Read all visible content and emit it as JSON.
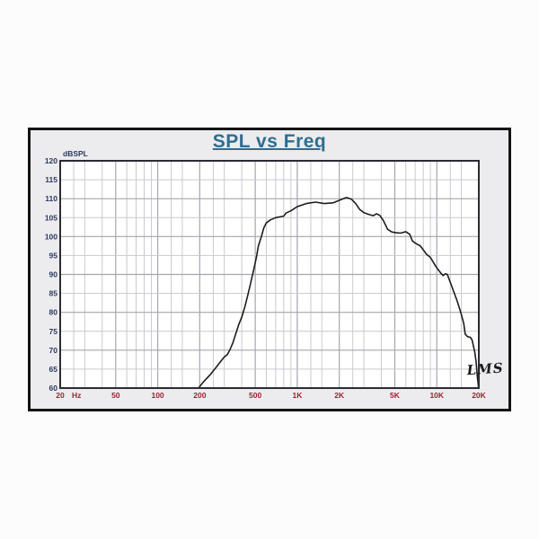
{
  "page": {
    "background": "#fcfcfc"
  },
  "card": {
    "background": "#ececee",
    "border_color": "#141414"
  },
  "title": "SPL vs Freq",
  "colors": {
    "title": "#2f6d90",
    "plot_background": "#ffffff",
    "plot_border": "#2b2b33",
    "grid_minor": "#c9cacf",
    "grid_major": "#a4a6ae",
    "curve": "#1d1d1f",
    "y_labels": "#2b3964",
    "x_labels": "#9c2033",
    "signature": "#1b1b1b"
  },
  "chart_data": {
    "type": "line",
    "title": "SPL vs Freq",
    "ylabel": "dBSPL",
    "x_unit_label": "Hz",
    "x_scale": "log",
    "xlim": [
      20,
      20000
    ],
    "ylim": [
      60,
      120
    ],
    "grid": "on",
    "y_ticks": [
      120,
      115,
      110,
      105,
      100,
      95,
      90,
      85,
      80,
      75,
      70,
      65,
      60
    ],
    "y_major_step": 10,
    "x_tick_labels": [
      {
        "f": 20,
        "label": "20"
      },
      {
        "f": 50,
        "label": "50"
      },
      {
        "f": 100,
        "label": "100"
      },
      {
        "f": 200,
        "label": "200"
      },
      {
        "f": 500,
        "label": "500"
      },
      {
        "f": 1000,
        "label": "1K"
      },
      {
        "f": 2000,
        "label": "2K"
      },
      {
        "f": 5000,
        "label": "5K"
      },
      {
        "f": 10000,
        "label": "10K"
      },
      {
        "f": 20000,
        "label": "20K"
      }
    ],
    "x_minor_multipliers": [
      1,
      1.25,
      1.5,
      2,
      2.5,
      3,
      4,
      5,
      6,
      7,
      8,
      9
    ],
    "annotations": [
      {
        "text": "LMS",
        "f": 16500,
        "db": 63.5
      }
    ],
    "series": [
      {
        "name": "SPL",
        "points": [
          [
            196,
            60
          ],
          [
            212,
            61.6
          ],
          [
            240,
            63.7
          ],
          [
            265,
            65.7
          ],
          [
            285,
            67.2
          ],
          [
            300,
            68.2
          ],
          [
            316,
            68.9
          ],
          [
            330,
            70.2
          ],
          [
            346,
            72.0
          ],
          [
            362,
            74.3
          ],
          [
            381,
            76.8
          ],
          [
            400,
            78.7
          ],
          [
            421,
            81.4
          ],
          [
            441,
            84.4
          ],
          [
            461,
            87.4
          ],
          [
            486,
            91.0
          ],
          [
            510,
            94.6
          ],
          [
            526,
            97.5
          ],
          [
            556,
            100.3
          ],
          [
            576,
            102.3
          ],
          [
            600,
            103.6
          ],
          [
            641,
            104.4
          ],
          [
            700,
            105.0
          ],
          [
            750,
            105.2
          ],
          [
            800,
            105.4
          ],
          [
            830,
            106.2
          ],
          [
            900,
            106.8
          ],
          [
            1000,
            107.9
          ],
          [
            1160,
            108.7
          ],
          [
            1350,
            109.1
          ],
          [
            1560,
            108.7
          ],
          [
            1810,
            108.9
          ],
          [
            2100,
            109.9
          ],
          [
            2250,
            110.3
          ],
          [
            2440,
            109.9
          ],
          [
            2620,
            108.7
          ],
          [
            2810,
            107.1
          ],
          [
            3010,
            106.3
          ],
          [
            3230,
            105.9
          ],
          [
            3500,
            105.5
          ],
          [
            3700,
            106.0
          ],
          [
            3900,
            105.6
          ],
          [
            4130,
            104.3
          ],
          [
            4440,
            101.9
          ],
          [
            4780,
            101.2
          ],
          [
            5120,
            101.0
          ],
          [
            5500,
            100.9
          ],
          [
            6000,
            101.3
          ],
          [
            6400,
            100.6
          ],
          [
            6700,
            98.8
          ],
          [
            7200,
            98.0
          ],
          [
            7600,
            97.6
          ],
          [
            8000,
            96.5
          ],
          [
            8400,
            95.4
          ],
          [
            9000,
            94.5
          ],
          [
            9800,
            92.2
          ],
          [
            10600,
            90.5
          ],
          [
            11100,
            89.7
          ],
          [
            11500,
            90.2
          ],
          [
            11900,
            90.0
          ],
          [
            13000,
            86.2
          ],
          [
            14000,
            83.0
          ],
          [
            14900,
            79.8
          ],
          [
            15600,
            77.1
          ],
          [
            16000,
            74.2
          ],
          [
            16600,
            73.6
          ],
          [
            17400,
            73.4
          ],
          [
            17900,
            72.7
          ],
          [
            18300,
            71.1
          ],
          [
            18700,
            69.5
          ],
          [
            19100,
            67.1
          ],
          [
            19500,
            63.2
          ],
          [
            19900,
            60.1
          ]
        ]
      }
    ]
  }
}
